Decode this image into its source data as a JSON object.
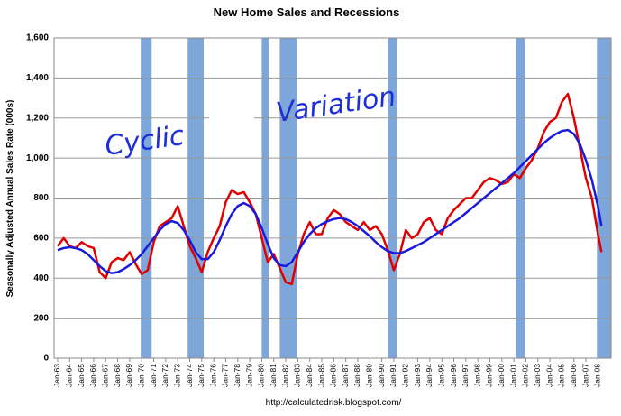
{
  "chart_data": {
    "type": "line",
    "title": "New Home Sales and Recessions",
    "ylabel": "Seasonally Adjusted Annual Sales Rate (000s)",
    "source": "http://calculatedrisk.blogspot.com/",
    "annotations": [
      "Cyclic",
      "Variation"
    ],
    "annotation_color": "#1f2fd8",
    "x": [
      1963,
      1963.5,
      1964,
      1964.5,
      1965,
      1965.5,
      1966,
      1966.5,
      1967,
      1967.5,
      1968,
      1968.5,
      1969,
      1969.5,
      1970,
      1970.5,
      1971,
      1971.5,
      1972,
      1972.5,
      1973,
      1973.5,
      1974,
      1974.5,
      1975,
      1975.5,
      1976,
      1976.5,
      1977,
      1977.5,
      1978,
      1978.5,
      1979,
      1979.5,
      1980,
      1980.5,
      1981,
      1981.5,
      1982,
      1982.5,
      1983,
      1983.5,
      1984,
      1984.5,
      1985,
      1985.5,
      1986,
      1986.5,
      1987,
      1987.5,
      1988,
      1988.5,
      1989,
      1989.5,
      1990,
      1990.5,
      1991,
      1991.5,
      1992,
      1992.5,
      1993,
      1993.5,
      1994,
      1994.5,
      1995,
      1995.5,
      1996,
      1996.5,
      1997,
      1997.5,
      1998,
      1998.5,
      1999,
      1999.5,
      2000,
      2000.5,
      2001,
      2001.5,
      2002,
      2002.5,
      2003,
      2003.5,
      2004,
      2004.5,
      2005,
      2005.5,
      2006,
      2006.5,
      2007,
      2007.5,
      2008,
      2008.3
    ],
    "series": [
      {
        "name": "New Home Sales",
        "color": "#e00000",
        "values": [
          560,
          600,
          560,
          550,
          580,
          560,
          550,
          430,
          400,
          480,
          500,
          490,
          530,
          470,
          420,
          440,
          580,
          660,
          680,
          700,
          760,
          660,
          560,
          500,
          430,
          530,
          600,
          660,
          780,
          840,
          820,
          830,
          780,
          720,
          600,
          480,
          520,
          450,
          380,
          370,
          520,
          620,
          680,
          620,
          620,
          700,
          740,
          720,
          680,
          660,
          640,
          680,
          640,
          660,
          620,
          540,
          440,
          520,
          640,
          600,
          620,
          680,
          700,
          640,
          620,
          700,
          740,
          770,
          800,
          800,
          840,
          880,
          900,
          890,
          870,
          880,
          920,
          900,
          950,
          990,
          1050,
          1130,
          1180,
          1200,
          1280,
          1320,
          1200,
          1050,
          900,
          800,
          620,
          530
        ]
      },
      {
        "name": "Cyclic Trend",
        "color": "#1a1adc",
        "values": [
          540,
          550,
          555,
          550,
          540,
          520,
          490,
          460,
          435,
          425,
          430,
          445,
          465,
          490,
          520,
          560,
          600,
          640,
          670,
          685,
          675,
          640,
          590,
          530,
          495,
          495,
          530,
          590,
          660,
          720,
          760,
          775,
          760,
          720,
          650,
          570,
          500,
          465,
          460,
          480,
          530,
          580,
          620,
          650,
          670,
          685,
          695,
          700,
          695,
          680,
          660,
          635,
          610,
          580,
          555,
          535,
          525,
          525,
          535,
          550,
          565,
          580,
          600,
          620,
          640,
          660,
          680,
          700,
          725,
          750,
          775,
          800,
          825,
          850,
          875,
          900,
          925,
          955,
          985,
          1015,
          1045,
          1075,
          1100,
          1120,
          1135,
          1140,
          1120,
          1070,
          990,
          890,
          760,
          660
        ]
      }
    ],
    "recessions": [
      {
        "start": 1969.92,
        "end": 1970.83
      },
      {
        "start": 1973.83,
        "end": 1975.17
      },
      {
        "start": 1980.0,
        "end": 1980.58
      },
      {
        "start": 1981.5,
        "end": 1982.92
      },
      {
        "start": 1990.5,
        "end": 1991.25
      },
      {
        "start": 2001.17,
        "end": 2001.92
      },
      {
        "start": 2007.92,
        "end": 2009.1
      }
    ],
    "recession_color": "#7fa6d8",
    "xlim": [
      1962.7,
      2009.1
    ],
    "ylim": [
      0,
      1600
    ],
    "yticks": [
      0,
      200,
      400,
      600,
      800,
      {
        "value": 1000,
        "label": "1,000"
      },
      {
        "value": 1200,
        "label": "1,200"
      },
      {
        "value": 1400,
        "label": "1,400"
      },
      {
        "value": 1600,
        "label": "1,600"
      }
    ],
    "xticks": [
      {
        "value": 1963,
        "label": "Jan-63"
      },
      {
        "value": 1964,
        "label": "Jan-64"
      },
      {
        "value": 1965,
        "label": "Jan-65"
      },
      {
        "value": 1966,
        "label": "Jan-66"
      },
      {
        "value": 1967,
        "label": "Jan-67"
      },
      {
        "value": 1968,
        "label": "Jan-68"
      },
      {
        "value": 1969,
        "label": "Jan-69"
      },
      {
        "value": 1970,
        "label": "Jan-70"
      },
      {
        "value": 1971,
        "label": "Jan-71"
      },
      {
        "value": 1972,
        "label": "Jan-72"
      },
      {
        "value": 1973,
        "label": "Jan-73"
      },
      {
        "value": 1974,
        "label": "Jan-74"
      },
      {
        "value": 1975,
        "label": "Jan-75"
      },
      {
        "value": 1976,
        "label": "Jan-76"
      },
      {
        "value": 1977,
        "label": "Jan-77"
      },
      {
        "value": 1978,
        "label": "Jan-78"
      },
      {
        "value": 1979,
        "label": "Jan-79"
      },
      {
        "value": 1980,
        "label": "Jan-80"
      },
      {
        "value": 1981,
        "label": "Jan-81"
      },
      {
        "value": 1982,
        "label": "Jan-82"
      },
      {
        "value": 1983,
        "label": "Jan-83"
      },
      {
        "value": 1984,
        "label": "Jan-84"
      },
      {
        "value": 1985,
        "label": "Jan-85"
      },
      {
        "value": 1986,
        "label": "Jan-86"
      },
      {
        "value": 1987,
        "label": "Jan-87"
      },
      {
        "value": 1988,
        "label": "Jan-88"
      },
      {
        "value": 1989,
        "label": "Jan-89"
      },
      {
        "value": 1990,
        "label": "Jan-90"
      },
      {
        "value": 1991,
        "label": "Jan-91"
      },
      {
        "value": 1992,
        "label": "Jan-92"
      },
      {
        "value": 1993,
        "label": "Jan-93"
      },
      {
        "value": 1994,
        "label": "Jan-94"
      },
      {
        "value": 1995,
        "label": "Jan-95"
      },
      {
        "value": 1996,
        "label": "Jan-96"
      },
      {
        "value": 1997,
        "label": "Jan-97"
      },
      {
        "value": 1998,
        "label": "Jan-98"
      },
      {
        "value": 1999,
        "label": "Jan-99"
      },
      {
        "value": 2000,
        "label": "Jan-00"
      },
      {
        "value": 2001,
        "label": "Jan-01"
      },
      {
        "value": 2002,
        "label": "Jan-02"
      },
      {
        "value": 2003,
        "label": "Jan-03"
      },
      {
        "value": 2004,
        "label": "Jan-04"
      },
      {
        "value": 2005,
        "label": "Jan-05"
      },
      {
        "value": 2006,
        "label": "Jan-06"
      },
      {
        "value": 2007,
        "label": "Jan-07"
      },
      {
        "value": 2008,
        "label": "Jan-08"
      }
    ],
    "grid": true
  }
}
